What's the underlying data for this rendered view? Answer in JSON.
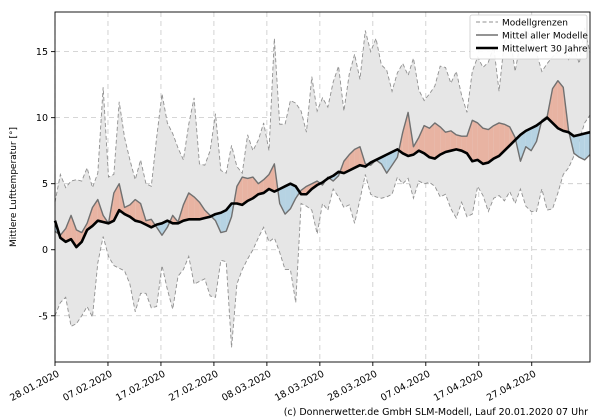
{
  "chart_data": {
    "type": "line",
    "title": "",
    "xlabel": "",
    "ylabel": "Mittlere Lufttemperatur [°]",
    "xlim": [
      "2020-01-28",
      "2020-05-08"
    ],
    "ylim": [
      -8.5,
      18
    ],
    "yticks": [
      -5,
      0,
      5,
      10,
      15
    ],
    "xticks": [
      "28.01.2020",
      "07.02.2020",
      "17.02.2020",
      "27.02.2020",
      "08.03.2020",
      "18.03.2020",
      "28.03.2020",
      "07.04.2020",
      "17.04.2020",
      "27.04.2020"
    ],
    "grid": true,
    "legend_position": "top-right",
    "legend": [
      "Modellgrenzen",
      "Mittel aller Modelle",
      "Mittelwert 30 Jahre"
    ],
    "footer": "(c) Donnerwetter.de GmbH SLM-Modell, Lauf 20.01.2020 07 Uhr",
    "colors": {
      "envelope_fill": "#e6e6e6",
      "envelope_line": "#909090",
      "model_mean": "#707070",
      "climatology": "#000000",
      "warmer_fill": "#e8b3a2",
      "colder_fill": "#b6d3e3",
      "grid": "#c8c8c8"
    },
    "series": [
      {
        "name": "Modellgrenzen",
        "upper": [
          3.6,
          5.7,
          4.7,
          5.2,
          5.3,
          5.2,
          6.2,
          4.7,
          5.8,
          12.3,
          5.5,
          5.7,
          11.2,
          8.5,
          6.8,
          5.3,
          6.8,
          5.0,
          4.8,
          8.5,
          11.8,
          9.6,
          8.8,
          7.7,
          6.8,
          9.5,
          11.5,
          6.5,
          6.4,
          7.5,
          10.3,
          6.0,
          5.8,
          7.9,
          6.3,
          5.8,
          8.7,
          7.5,
          8.3,
          9.6,
          7.5,
          16.0,
          9.5,
          9.5,
          11.3,
          11.1,
          10.5,
          8.9,
          13.1,
          10.5,
          11.5,
          10.8,
          12.7,
          13.9,
          10.5,
          13.3,
          14.8,
          12.9,
          16.6,
          15.0,
          16.0,
          14.0,
          13.6,
          12.0,
          13.4,
          14.1,
          13.2,
          14.5,
          12.1,
          11.3,
          11.8,
          12.4,
          13.9,
          13.8,
          12.6,
          13.5,
          11.7,
          10.4,
          13.5,
          14.6,
          13.8,
          14.2,
          15.4,
          12.0,
          15.8,
          16.4,
          13.5,
          15.7,
          16.7,
          16.0,
          14.9,
          13.5,
          14.1,
          14.6,
          15.0,
          15.2,
          14.4,
          15.3,
          14.1,
          16.8,
          14.9
        ],
        "lower": [
          -5.0,
          -4.0,
          -3.6,
          -5.8,
          -5.6,
          -5.0,
          -4.3,
          -5.1,
          -1.0,
          1.0,
          -0.5,
          -1.2,
          -1.4,
          -1.6,
          -2.6,
          -4.7,
          -3.3,
          -3.3,
          -4.4,
          -4.3,
          -1.2,
          -3.0,
          -4.5,
          -2.0,
          -1.5,
          -0.5,
          -2.6,
          -2.4,
          -2.2,
          -3.5,
          -3.6,
          -0.8,
          -0.9,
          -7.4,
          -2.6,
          -1.5,
          -0.7,
          0.0,
          0.9,
          1.7,
          0.6,
          0.9,
          -0.2,
          -1.5,
          -1.5,
          -4.0,
          3.5,
          3.3,
          3.0,
          1.2,
          3.5,
          3.0,
          4.6,
          4.0,
          3.2,
          3.4,
          2.0,
          3.8,
          5.7,
          4.2,
          4.0,
          3.9,
          4.0,
          4.2,
          5.5,
          5.0,
          5.4,
          3.9,
          5.2,
          5.0,
          5.1,
          4.8,
          4.0,
          4.2,
          3.1,
          2.4,
          3.6,
          2.5,
          2.7,
          4.8,
          4.1,
          2.9,
          3.9,
          4.1,
          3.7,
          4.4,
          3.5,
          4.6,
          3.3,
          2.9,
          2.9,
          4.6,
          3.0,
          3.1,
          4.3,
          5.7,
          6.2,
          7.1,
          8.3,
          9.6,
          10.2
        ]
      },
      {
        "name": "Mittel aller Modelle",
        "values": [
          1.4,
          1.1,
          1.6,
          2.6,
          1.5,
          1.3,
          2.0,
          3.2,
          3.8,
          2.6,
          2.0,
          4.3,
          5.0,
          3.2,
          3.4,
          3.8,
          3.5,
          2.2,
          2.3,
          1.7,
          1.1,
          1.7,
          2.6,
          2.1,
          3.4,
          4.3,
          4.0,
          3.6,
          3.0,
          2.6,
          2.2,
          1.3,
          1.4,
          2.5,
          4.8,
          5.5,
          5.4,
          5.5,
          5.0,
          5.3,
          5.7,
          6.5,
          3.5,
          2.7,
          3.1,
          3.9,
          4.5,
          4.8,
          5.0,
          5.2,
          4.9,
          5.5,
          5.2,
          5.6,
          6.7,
          7.2,
          7.6,
          7.8,
          6.5,
          6.4,
          6.8,
          6.5,
          5.8,
          6.4,
          7.0,
          8.9,
          10.4,
          7.8,
          8.5,
          9.4,
          9.2,
          9.6,
          9.3,
          8.9,
          9.0,
          8.7,
          8.6,
          8.6,
          9.8,
          9.6,
          9.2,
          9.1,
          9.4,
          9.6,
          9.5,
          9.3,
          8.5,
          6.7,
          7.8,
          7.5,
          8.2,
          9.8,
          10.1,
          12.2,
          12.8,
          12.3,
          9.0,
          7.3,
          7.0,
          6.8,
          7.2
        ]
      },
      {
        "name": "Mittelwert 30 Jahre",
        "values": [
          2.2,
          0.9,
          0.6,
          0.8,
          0.2,
          0.6,
          1.5,
          1.8,
          2.2,
          2.1,
          2.0,
          2.2,
          3.0,
          2.7,
          2.5,
          2.2,
          2.1,
          1.9,
          1.7,
          1.9,
          2.0,
          2.2,
          2.0,
          2.0,
          2.2,
          2.3,
          2.3,
          2.3,
          2.4,
          2.5,
          2.7,
          2.8,
          3.0,
          3.5,
          3.5,
          3.4,
          3.7,
          3.9,
          4.2,
          4.3,
          4.6,
          4.4,
          4.6,
          4.8,
          5.0,
          4.8,
          4.2,
          4.2,
          4.6,
          4.9,
          5.1,
          5.4,
          5.6,
          5.9,
          5.8,
          6.0,
          6.2,
          6.4,
          6.3,
          6.6,
          6.8,
          7.0,
          7.2,
          7.4,
          7.6,
          7.3,
          7.1,
          7.2,
          7.5,
          7.3,
          7.0,
          6.9,
          7.2,
          7.4,
          7.5,
          7.6,
          7.5,
          7.3,
          6.7,
          6.8,
          6.5,
          6.6,
          6.9,
          7.1,
          7.5,
          7.9,
          8.3,
          8.7,
          9.0,
          9.2,
          9.4,
          9.7,
          10.0,
          9.6,
          9.2,
          9.0,
          8.9,
          8.6,
          8.7,
          8.8,
          8.9
        ]
      }
    ]
  }
}
